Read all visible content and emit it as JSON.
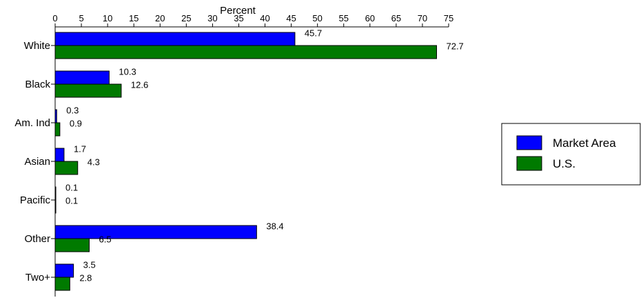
{
  "chart_data": {
    "type": "bar",
    "orientation": "horizontal",
    "title": "",
    "xlabel": "Percent",
    "ylabel": "",
    "xlim": [
      0,
      75
    ],
    "x_ticks": [
      0,
      5,
      10,
      15,
      20,
      25,
      30,
      35,
      40,
      45,
      50,
      55,
      60,
      65,
      70,
      75
    ],
    "x_axis_position": "top",
    "grid": false,
    "legend_position": "right",
    "categories": [
      "White",
      "Black",
      "Am. Ind",
      "Asian",
      "Pacific",
      "Other",
      "Two+"
    ],
    "series": [
      {
        "name": "Market Area",
        "color": "#0000ff",
        "values": [
          45.7,
          10.3,
          0.3,
          1.7,
          0.1,
          38.4,
          3.5
        ]
      },
      {
        "name": "U.S.",
        "color": "#007a00",
        "values": [
          72.7,
          12.6,
          0.9,
          4.3,
          0.1,
          6.5,
          2.8
        ]
      }
    ]
  }
}
